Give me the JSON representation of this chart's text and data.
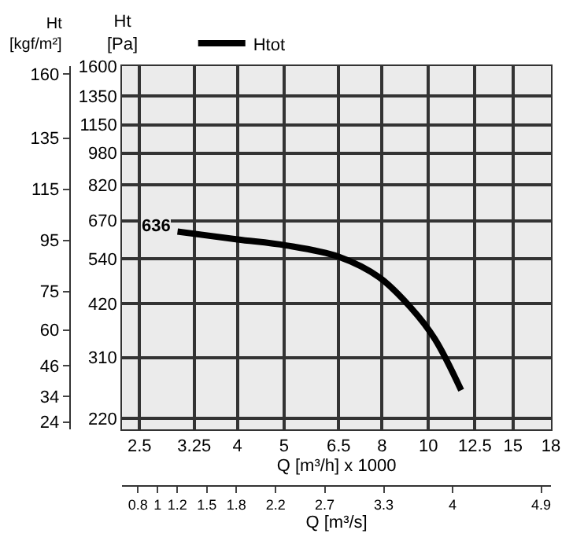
{
  "chart_data": {
    "type": "line",
    "xlabel": "Q [m³/h] x 1000",
    "x2label": "Q [m³/s]",
    "ylabel": "Ht\n[Pa]",
    "y2label": "Ht\n[kgf/m²]",
    "x": [
      3.0,
      4.0,
      5.05,
      6.5,
      7.9,
      9.2,
      10.3,
      11.7
    ],
    "series": [
      {
        "name": "Htot",
        "color": "#000000",
        "values": [
          630,
          603,
          583,
          547,
          487,
          410,
          345,
          258
        ]
      }
    ],
    "annotations": [
      {
        "text": "636",
        "x": 3.0,
        "y": 630
      }
    ],
    "log": "xy",
    "xlim": [
      2.3,
      18
    ],
    "xticks": [
      2.5,
      3.25,
      4,
      5,
      6.5,
      8,
      10,
      12.5,
      15,
      18
    ],
    "x2lim": [
      0.64,
      5.0
    ],
    "x2ticks": [
      0.8,
      1,
      1.2,
      1.5,
      1.8,
      2.2,
      2.7,
      3.3,
      4,
      4.9
    ],
    "ylim": [
      207,
      1600
    ],
    "yticks": [
      220,
      310,
      420,
      540,
      670,
      820,
      980,
      1150,
      1350,
      1600
    ],
    "y2lim": [
      21.1,
      163.2
    ],
    "y2ticks": [
      24,
      34,
      46,
      60,
      75,
      95,
      115,
      135,
      160
    ],
    "grid": true,
    "legend": "top left",
    "marker": "none",
    "line_style": "solid"
  }
}
